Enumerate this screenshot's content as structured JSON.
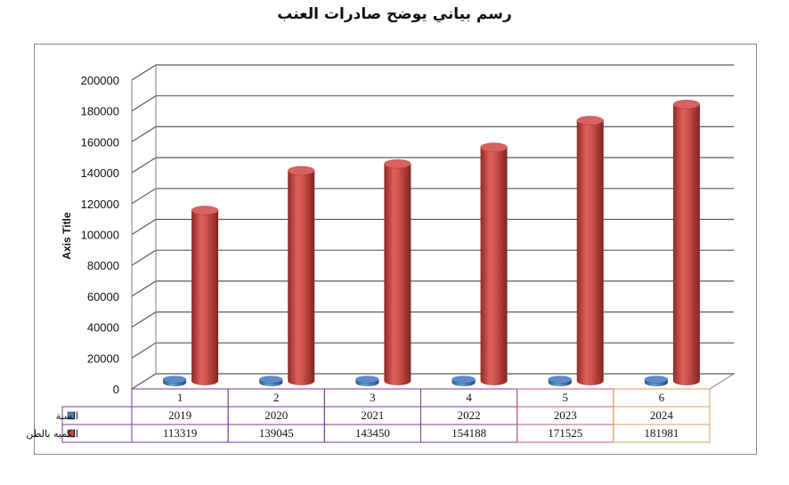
{
  "chart_data": {
    "type": "bar",
    "title": "رسم بياني يوضح صادرات العنب",
    "ylabel": "Axis Title",
    "xlabel": "",
    "categories": [
      "1",
      "2",
      "3",
      "4",
      "5",
      "6"
    ],
    "ylim": [
      0,
      200000
    ],
    "yticks": [
      0,
      20000,
      40000,
      60000,
      80000,
      100000,
      120000,
      140000,
      160000,
      180000,
      200000
    ],
    "grid": true,
    "legend": "data-table-left",
    "series": [
      {
        "name": "السنة",
        "values": [
          2019,
          2020,
          2021,
          2022,
          2023,
          2024
        ],
        "color": "#4a7ebb"
      },
      {
        "name": "الكميه بالطن",
        "values": [
          113319,
          139045,
          143450,
          154188,
          171525,
          181981
        ],
        "color": "#c0504d"
      }
    ]
  }
}
